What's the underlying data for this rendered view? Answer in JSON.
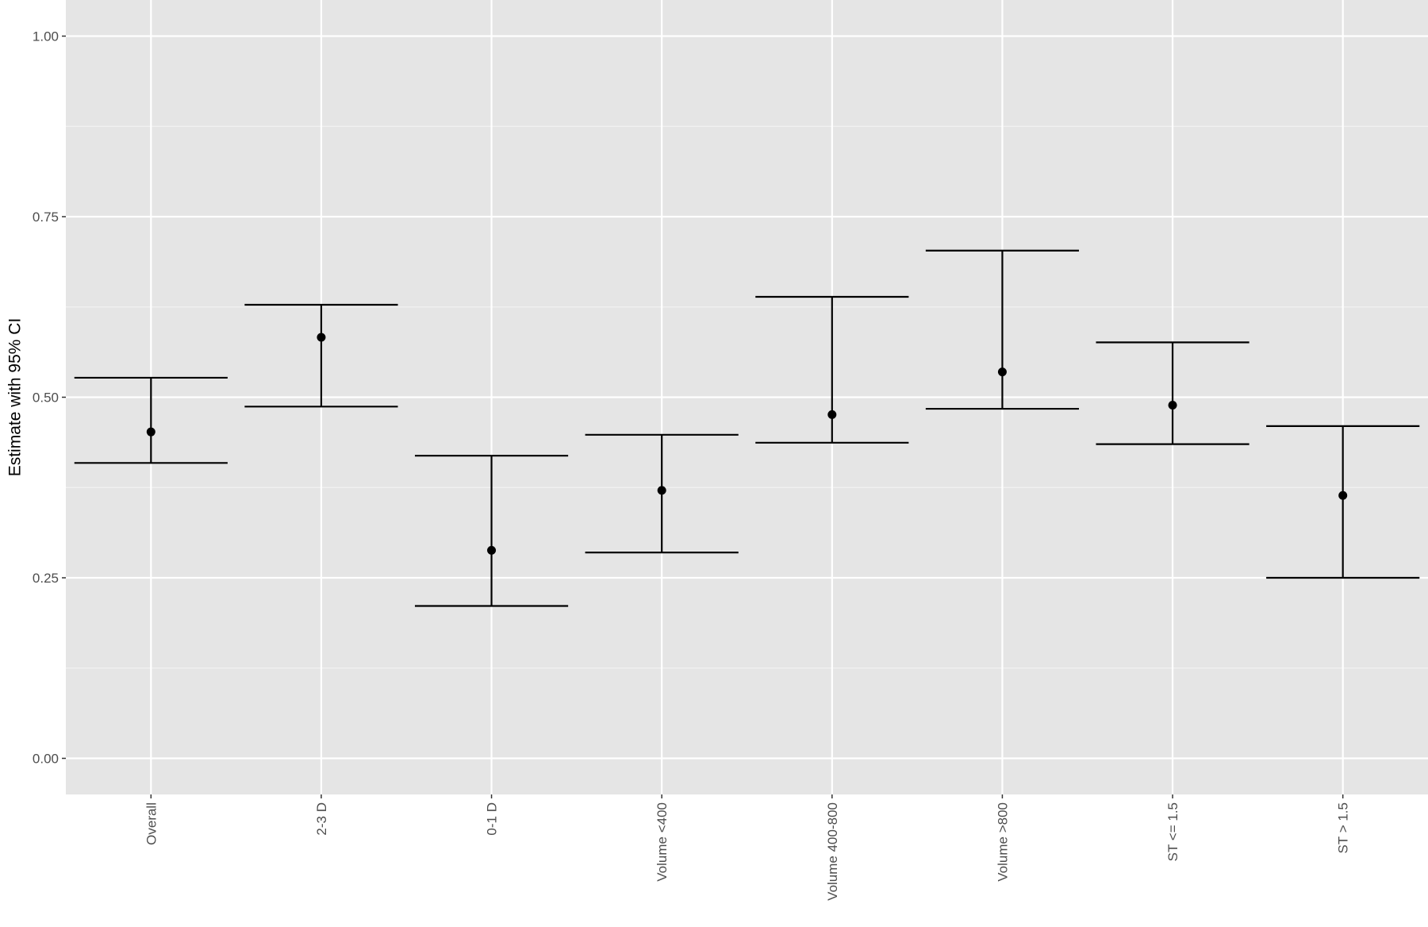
{
  "chart_data": {
    "type": "errorbar",
    "title": "",
    "xlabel": "",
    "ylabel": "Estimate with 95% CI",
    "ylim": [
      -0.05,
      1.05
    ],
    "yticks": [
      0.0,
      0.25,
      0.5,
      0.75,
      1.0
    ],
    "ytick_labels": [
      "0.00",
      "0.25",
      "0.50",
      "0.75",
      "1.00"
    ],
    "grid": true,
    "legend": "none",
    "categories": [
      "Overall",
      "2-3 D",
      "0-1 D",
      "Volume <400",
      "Volume 400-800",
      "Volume >800",
      "ST <= 1.5",
      "ST > 1.5"
    ],
    "estimate": [
      0.452,
      0.583,
      0.288,
      0.371,
      0.476,
      0.535,
      0.489,
      0.364
    ],
    "lower": [
      0.409,
      0.487,
      0.211,
      0.285,
      0.437,
      0.484,
      0.435,
      0.25
    ],
    "upper": [
      0.527,
      0.628,
      0.419,
      0.448,
      0.639,
      0.703,
      0.576,
      0.46
    ]
  },
  "colors": {
    "panel_background": "#e5e5e5",
    "grid_major": "#ffffff",
    "grid_minor": "#f2f2f2",
    "marks": "#000000",
    "tick_text": "#4d4d4d"
  }
}
